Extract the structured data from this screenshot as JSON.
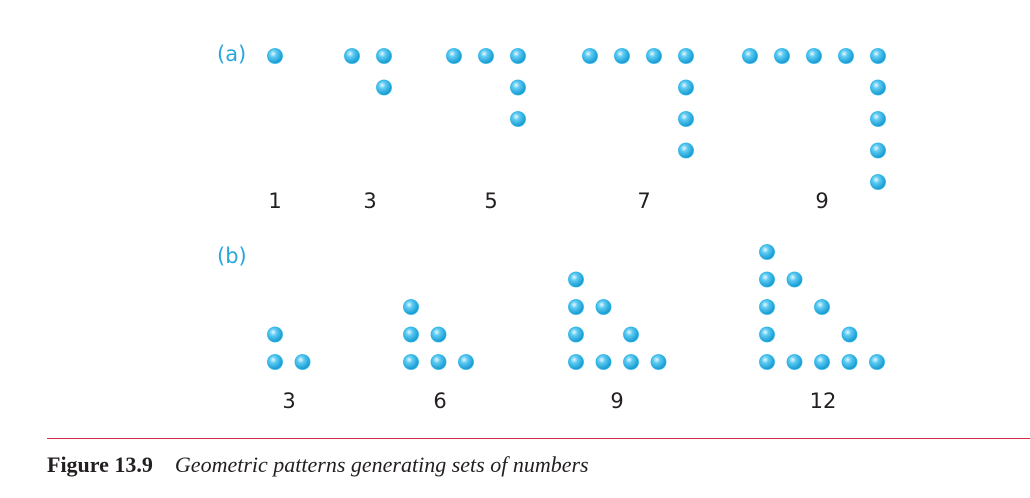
{
  "row_a": {
    "label": "(a)",
    "patterns": [
      {
        "value": "1",
        "dots": 1
      },
      {
        "value": "3",
        "dots": 3
      },
      {
        "value": "5",
        "dots": 5
      },
      {
        "value": "7",
        "dots": 7
      },
      {
        "value": "9",
        "dots": 9
      }
    ]
  },
  "row_b": {
    "label": "(b)",
    "patterns": [
      {
        "value": "3",
        "dots": 3
      },
      {
        "value": "6",
        "dots": 6
      },
      {
        "value": "9",
        "dots": 9
      },
      {
        "value": "12",
        "dots": 12
      }
    ]
  },
  "caption": {
    "label": "Figure 13.9",
    "text": "Geometric patterns generating sets of numbers"
  },
  "colors": {
    "dot_fill": "#29b3e6",
    "dot_highlight": "#e8f8ff",
    "label": "#29a8dc",
    "rule": "#d62b4a",
    "text": "#231f20"
  }
}
